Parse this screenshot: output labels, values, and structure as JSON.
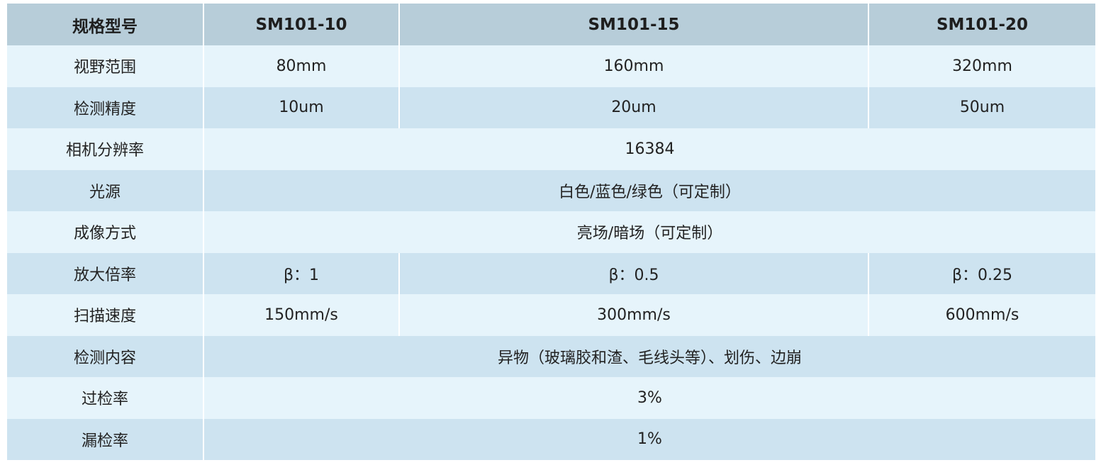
{
  "header": [
    "规格型号",
    "SM101-10",
    "SM101-15",
    "SM101-20"
  ],
  "rows": [
    {
      "label": "视野范围",
      "cells": [
        "80mm",
        "160mm",
        "320mm"
      ]
    },
    {
      "label": "检测精度",
      "cells": [
        "10um",
        "20um",
        "50um"
      ]
    },
    {
      "label": "相机分辨率",
      "cells": [
        "16384"
      ]
    },
    {
      "label": "光源",
      "cells": [
        "白色/蓝色/绿色（可定制）"
      ]
    },
    {
      "label": "成像方式",
      "cells": [
        "亮场/暗场（可定制）"
      ]
    },
    {
      "label": "放大倍率",
      "cells": [
        "β：1",
        "β：0.5",
        "β：0.25"
      ]
    },
    {
      "label": "扫描速度",
      "cells": [
        "150mm/s",
        "300mm/s",
        "600mm/s"
      ]
    },
    {
      "label": "检测内容",
      "cells": [
        "异物（玻璃胶和渣、毛线头等）、划伤、边崩"
      ]
    },
    {
      "label": "过检率",
      "cells": [
        "3%"
      ]
    },
    {
      "label": "漏检率",
      "cells": [
        "1%"
      ]
    }
  ],
  "colors": {
    "header": "#b7cdd9",
    "row_light": "#e6f4fb",
    "row_dark": "#cde3f0"
  }
}
